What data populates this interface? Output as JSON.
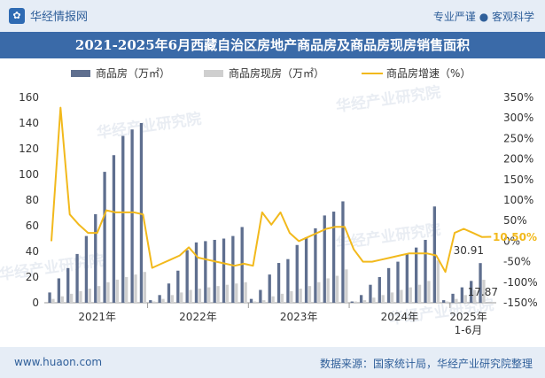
{
  "header": {
    "brand": "华经情报网",
    "slogan": "专业严谨 ● 客观科学"
  },
  "watermark": "华经产业研究院",
  "footer": {
    "site": "www.huaon.com",
    "source": "数据来源：国家统计局，华经产业研究院整理"
  },
  "colors": {
    "bar_sale": "#5f6f8f",
    "bar_ready": "#cfcfcf",
    "line": "#f2b91c",
    "header_bg": "#e6edf6",
    "title_bg": "#3a6aa8"
  },
  "chart_data": {
    "type": "bar",
    "title": "2021-2025年6月西藏自治区房地产商品房及商品房现房销售面积",
    "legend_position": "top",
    "x_tick_labels": [
      "2021年",
      "2022年",
      "2023年",
      "2024年",
      "2025年\n1-6月"
    ],
    "y_left": {
      "range": [
        0,
        160
      ],
      "ticks": [
        "0",
        "20",
        "40",
        "60",
        "80",
        "100",
        "120",
        "140",
        "160"
      ]
    },
    "y_right": {
      "range": [
        -150,
        350
      ],
      "ticks": [
        "-150%",
        "-100%",
        "-50%",
        "0%",
        "50%",
        "100%",
        "150%",
        "200%",
        "250%",
        "300%",
        "350%"
      ]
    },
    "series": [
      {
        "name": "商品房（万㎡）",
        "kind": "bar",
        "values": [
          8,
          19,
          27,
          38,
          52,
          69,
          102,
          115,
          130,
          135,
          140,
          2,
          6,
          15,
          25,
          41,
          47,
          48,
          49,
          50,
          52,
          59,
          3,
          10,
          22,
          31,
          34,
          45,
          51,
          58,
          68,
          71,
          79,
          1,
          6,
          14,
          20,
          27,
          32,
          38,
          43,
          49,
          75,
          2,
          7,
          12,
          17,
          30.91
        ]
      },
      {
        "name": "商品房现房（万㎡）",
        "kind": "bar",
        "values": [
          3,
          5,
          7,
          9,
          11,
          13,
          16,
          18,
          20,
          22,
          24,
          1,
          3,
          6,
          8,
          10,
          11,
          12,
          13,
          14,
          15,
          16,
          1,
          2,
          5,
          7,
          9,
          11,
          13,
          16,
          19,
          21,
          26,
          1,
          2,
          4,
          6,
          8,
          10,
          12,
          14,
          17,
          33,
          1,
          3,
          6,
          10,
          17.87
        ]
      },
      {
        "name": "商品房增速（%）",
        "kind": "line",
        "axis": "right",
        "values": [
          0,
          325,
          65,
          40,
          20,
          20,
          75,
          70,
          70,
          70,
          65,
          -65,
          -55,
          -45,
          -35,
          -15,
          -40,
          -45,
          -50,
          -55,
          -60,
          -55,
          -60,
          70,
          40,
          70,
          20,
          0,
          10,
          20,
          30,
          35,
          35,
          -20,
          -50,
          -50,
          -45,
          -40,
          -35,
          -30,
          -30,
          -30,
          -35,
          -75,
          20,
          30,
          20,
          10,
          10.5
        ]
      }
    ],
    "data_labels": [
      "30.91",
      "17.87",
      "10.50%"
    ]
  }
}
